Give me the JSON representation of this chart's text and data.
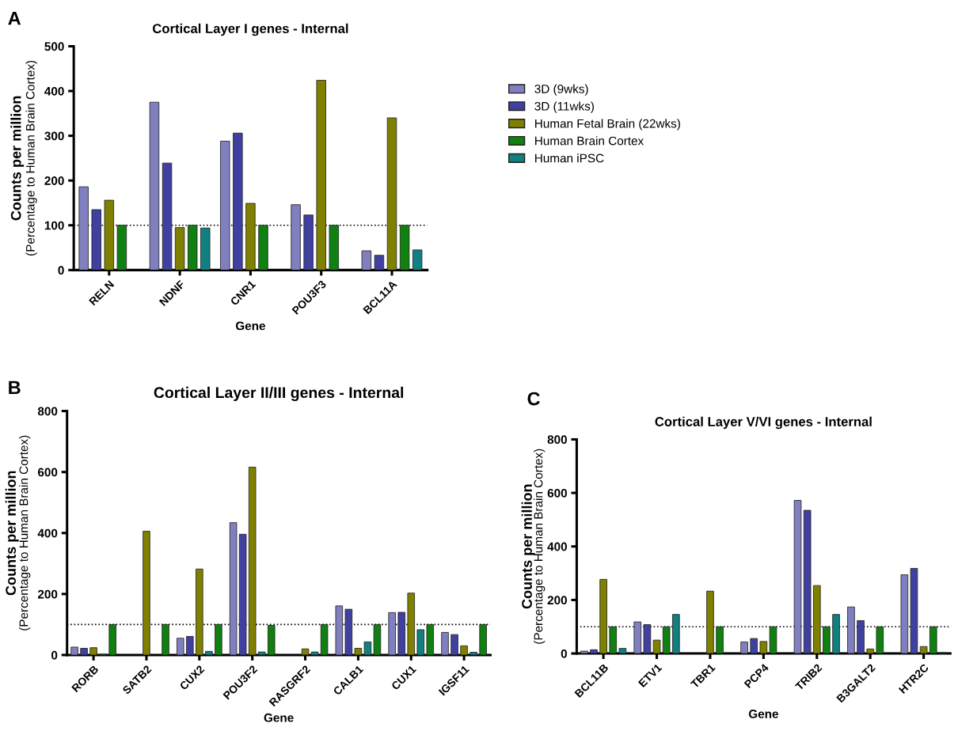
{
  "chart_data": [
    {
      "type": "bar",
      "title": "Cortical Layer I genes - Internal",
      "xlabel": "Gene",
      "ylabel": "Counts per million\n(Percentage to Human Brain Cortex)",
      "annotations": [
        "A"
      ],
      "categories": [
        "RELN",
        "NDNF",
        "CNR1",
        "POU3F3",
        "BCL11A"
      ],
      "series": [
        {
          "name": "3D (9wks)",
          "color": "#8080c0",
          "values": [
            186,
            375,
            288,
            146,
            43
          ]
        },
        {
          "name": "3D (11wks)",
          "color": "#4040a0",
          "values": [
            135,
            239,
            306,
            123,
            33
          ]
        },
        {
          "name": "Human Fetal Brain (22wks)",
          "color": "#808000",
          "values": [
            156,
            95,
            149,
            424,
            340
          ]
        },
        {
          "name": "Human Brain Cortex",
          "color": "#108010",
          "values": [
            100,
            100,
            100,
            100,
            100
          ]
        },
        {
          "name": "Human iPSC",
          "color": "#108080",
          "values": [
            null,
            94,
            null,
            null,
            45
          ]
        }
      ],
      "ylim": [
        0,
        500
      ],
      "yticks": [
        0,
        100,
        200,
        300,
        400,
        500
      ],
      "grid": false,
      "legend": "right",
      "ref_lines": [
        {
          "axis": "y",
          "value": 100,
          "line_style": "dotted",
          "color": "#000000"
        }
      ]
    },
    {
      "type": "bar",
      "title": "Cortical Layer II/III genes - Internal",
      "xlabel": "Gene",
      "ylabel": "Counts per million\n(Percentage to Human Brain Cortex)",
      "annotations": [
        "B"
      ],
      "categories": [
        "RORB",
        "SATB2",
        "CUX2",
        "POU3F2",
        "RASGRF2",
        "CALB1",
        "CUX1",
        "IGSF11"
      ],
      "series": [
        {
          "color": "#8080c0",
          "values": [
            26,
            null,
            55,
            434,
            null,
            161,
            139,
            74
          ]
        },
        {
          "color": "#4040a0",
          "values": [
            22,
            null,
            61,
            396,
            null,
            150,
            140,
            67
          ]
        },
        {
          "color": "#808000",
          "values": [
            24,
            406,
            282,
            616,
            20,
            22,
            203,
            30
          ]
        },
        {
          "color": "#108080",
          "values": [
            3,
            null,
            12,
            10,
            10,
            43,
            83,
            9
          ]
        },
        {
          "color": "#108010",
          "values": [
            100,
            100,
            100,
            97,
            100,
            100,
            100,
            100
          ]
        }
      ],
      "ylim": [
        0,
        800
      ],
      "yticks": [
        0,
        200,
        400,
        600,
        800
      ],
      "grid": false,
      "legend": false,
      "ref_lines": [
        {
          "axis": "y",
          "value": 100,
          "line_style": "dotted",
          "color": "#000000"
        }
      ]
    },
    {
      "type": "bar",
      "title": "Cortical Layer V/VI genes - Internal",
      "xlabel": "Gene",
      "ylabel": "Counts per million\n(Percentage to Human Brain Cortex)",
      "annotations": [
        "C"
      ],
      "categories": [
        "BCL11B",
        "ETV1",
        "TBR1",
        "PCP4",
        "TRIB2",
        "B3GALT2",
        "HTR2C"
      ],
      "series": [
        {
          "color": "#8080c0",
          "values": [
            9,
            118,
            null,
            43,
            572,
            174,
            294
          ]
        },
        {
          "color": "#4040a0",
          "values": [
            14,
            108,
            null,
            56,
            535,
            123,
            318
          ]
        },
        {
          "color": "#808000",
          "values": [
            277,
            50,
            233,
            45,
            254,
            17,
            26
          ]
        },
        {
          "color": "#108010",
          "values": [
            100,
            100,
            100,
            100,
            100,
            100,
            100
          ]
        },
        {
          "color": "#108080",
          "values": [
            19,
            146,
            null,
            null,
            146,
            null,
            4
          ]
        }
      ],
      "ylim": [
        0,
        800
      ],
      "yticks": [
        0,
        200,
        400,
        600,
        800
      ],
      "grid": false,
      "legend": false,
      "ref_lines": [
        {
          "axis": "y",
          "value": 100,
          "line_style": "dotted",
          "color": "#000000"
        }
      ]
    }
  ]
}
